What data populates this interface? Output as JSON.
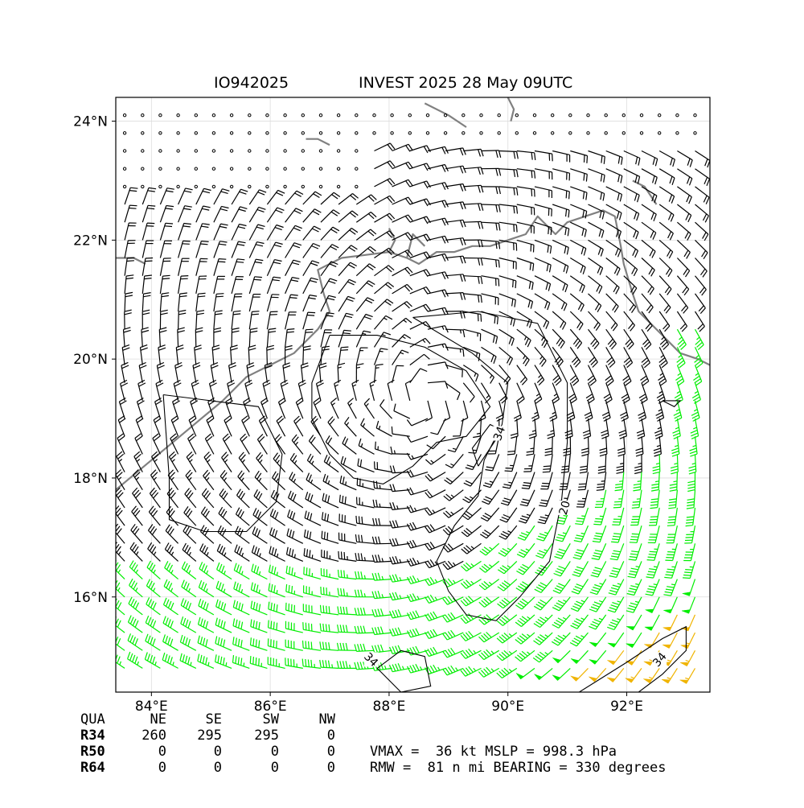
{
  "title": {
    "storm_id": "IO942025",
    "storm_desc": "INVEST 2025 28 May 09UTC"
  },
  "axes": {
    "lon_ticks": [
      "84°E",
      "86°E",
      "88°E",
      "90°E",
      "92°E"
    ],
    "lon_values": [
      84,
      86,
      88,
      90,
      92
    ],
    "lat_ticks": [
      "24°N",
      "22°N",
      "20°N",
      "18°N",
      "16°N"
    ],
    "lat_values": [
      24,
      22,
      20,
      18,
      16
    ],
    "lon_range": [
      83.4,
      93.4
    ],
    "lat_range": [
      14.4,
      24.4
    ],
    "grid": true
  },
  "wind_field": {
    "center": {
      "lon": 88.6,
      "lat": 19.3
    },
    "colors": {
      "below_34kt": "#000000",
      "gale_34kt": "#00ee00",
      "storm_50kt": "#f0b400"
    },
    "calm_marker": "circle"
  },
  "contours": [
    {
      "label": "34",
      "color": "#000000"
    },
    {
      "label": "20",
      "color": "#000000"
    },
    {
      "label": "34",
      "color": "#000000"
    },
    {
      "label": "34",
      "color": "#000000"
    }
  ],
  "coastline_color": "#808080",
  "wind_radii_table": {
    "header": [
      "QUA",
      "NE",
      "SE",
      "SW",
      "NW"
    ],
    "rows": [
      {
        "label": "R34",
        "values": [
          "260",
          "295",
          "295",
          "0"
        ]
      },
      {
        "label": "R50",
        "values": [
          "0",
          "0",
          "0",
          "0"
        ]
      },
      {
        "label": "R64",
        "values": [
          "0",
          "0",
          "0",
          "0"
        ]
      }
    ]
  },
  "summary": {
    "line1": "VMAX =  36 kt MSLP = 998.3 hPa",
    "line2": "RMW =  81 n mi BEARING = 330 degrees"
  }
}
